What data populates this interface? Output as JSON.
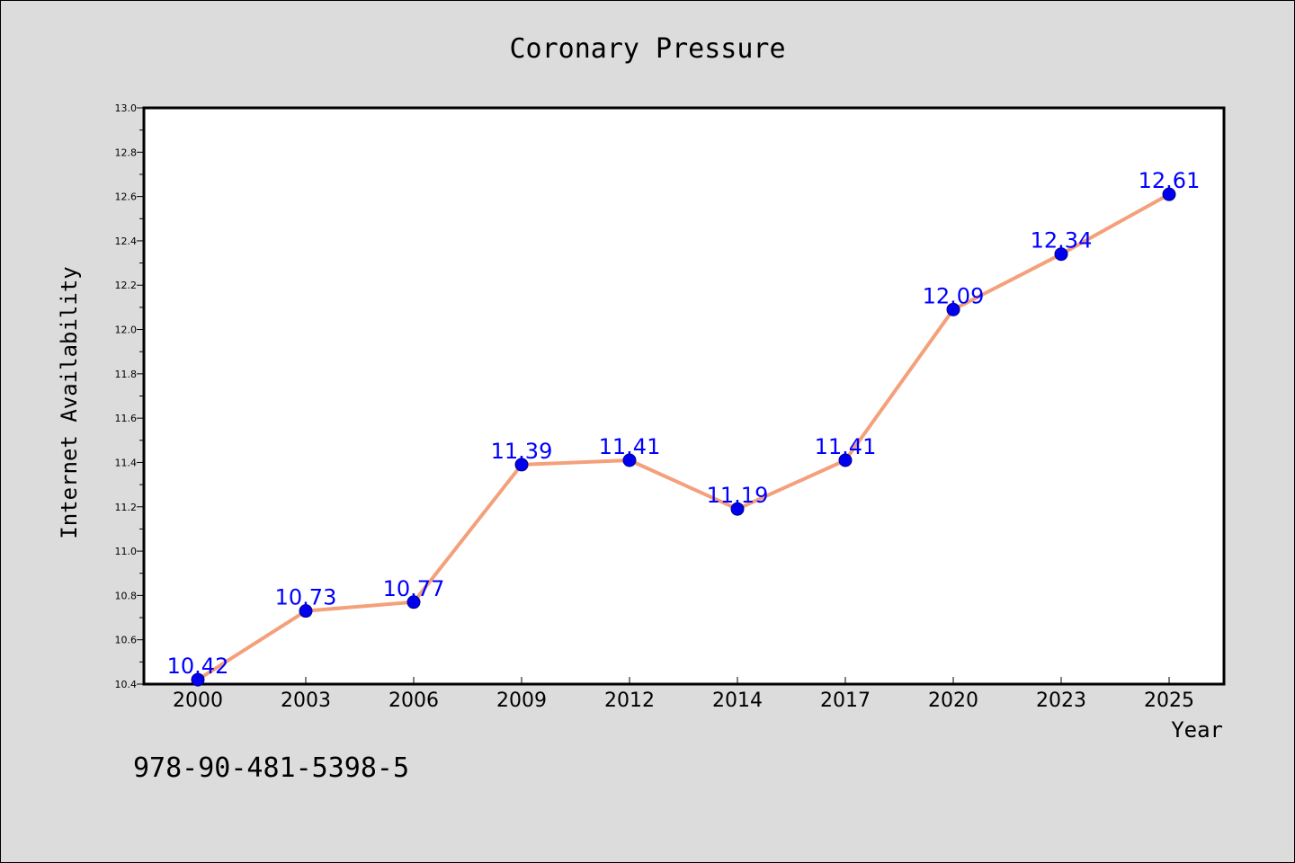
{
  "chart_data": {
    "type": "line",
    "title": "Coronary Pressure",
    "xlabel": "Year",
    "ylabel": "Internet Availability",
    "categories": [
      "2000",
      "2003",
      "2006",
      "2009",
      "2012",
      "2014",
      "2017",
      "2020",
      "2023",
      "2025"
    ],
    "series": [
      {
        "values": [
          10.42,
          10.73,
          10.77,
          11.39,
          11.41,
          11.19,
          11.41,
          12.09,
          12.34,
          12.61
        ],
        "labels": [
          "10.42",
          "10.73",
          "10.77",
          "11.39",
          "11.41",
          "11.19",
          "11.41",
          "12.09",
          "12.34",
          "12.61"
        ],
        "line_color": "#f4a07a",
        "marker_color": "#0000ee",
        "label_color": "#0000ff"
      }
    ],
    "ylim": [
      10.4,
      13.0
    ],
    "yticks": [
      "10.4",
      "10.6",
      "10.8",
      "11.0",
      "11.2",
      "11.4",
      "11.6",
      "11.8",
      "12.0",
      "12.2",
      "12.4",
      "12.6",
      "12.8",
      "13.0"
    ],
    "grid": false,
    "legend": false
  },
  "footer": {
    "isbn": "978-90-481-5398-5"
  },
  "colors": {
    "background": "#dcdcdc",
    "plot_background": "#ffffff"
  }
}
